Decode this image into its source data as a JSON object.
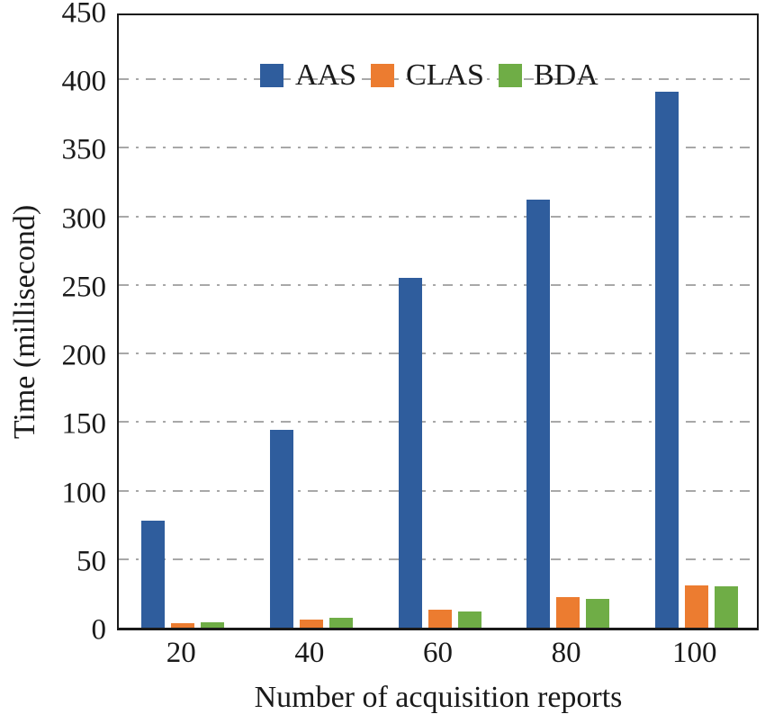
{
  "chart_data": {
    "type": "bar",
    "title": "",
    "xlabel": "Number of acquisition reports",
    "ylabel": "Time (millisecond)",
    "categories": [
      "20",
      "40",
      "60",
      "80",
      "100"
    ],
    "series": [
      {
        "name": "AAS",
        "color": "#2f5d9d",
        "values": [
          78,
          144,
          255,
          312,
          391
        ]
      },
      {
        "name": "CLAS",
        "color": "#ec7c30",
        "values": [
          3,
          6,
          13,
          22,
          31
        ]
      },
      {
        "name": "BDA",
        "color": "#6fad46",
        "values": [
          4,
          7,
          12,
          21,
          30
        ]
      }
    ],
    "ylim": [
      0,
      450
    ],
    "ytick_step": 50,
    "yticks": [
      0,
      50,
      100,
      150,
      200,
      250,
      300,
      350,
      400,
      450
    ],
    "grid": "horizontal dash-dot gridlines at every 50, none at 0 or 450",
    "legend_position": "top-left inside plot area",
    "colors": {
      "grid": "#a8a8a8",
      "axis": "#1a1a1a",
      "background": "#ffffff"
    }
  }
}
